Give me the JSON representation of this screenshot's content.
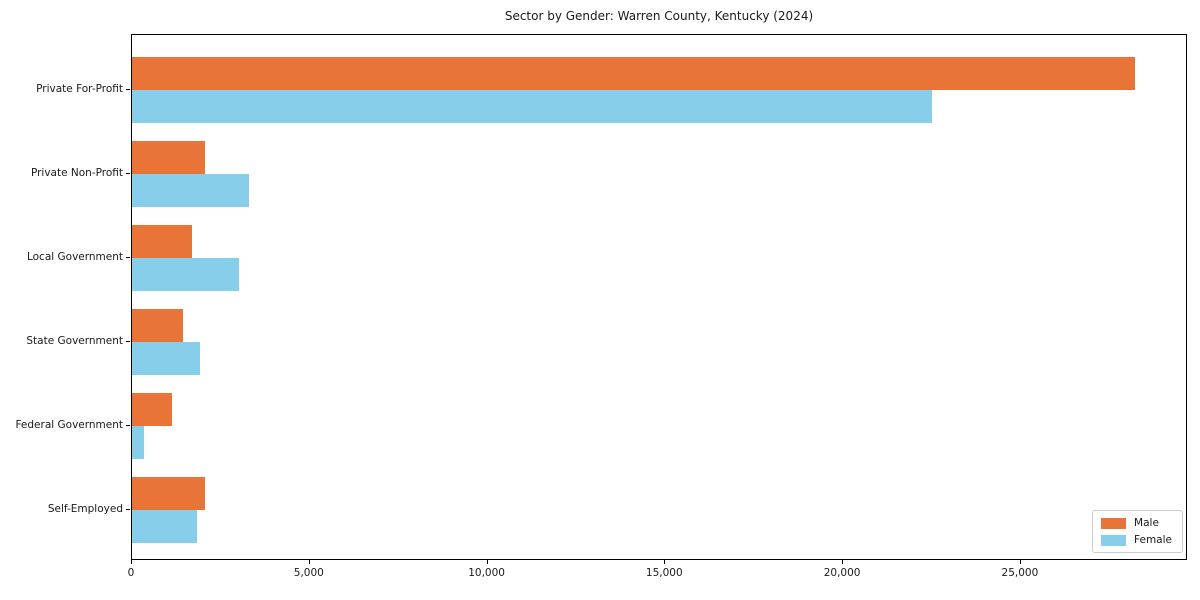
{
  "chart_data": {
    "type": "bar",
    "orientation": "horizontal",
    "title": "Sector by Gender: Warren County, Kentucky (2024)",
    "xlabel": "",
    "ylabel": "",
    "categories": [
      "Private For-Profit",
      "Private Non-Profit",
      "Local Government",
      "State Government",
      "Federal Government",
      "Self-Employed"
    ],
    "series": [
      {
        "name": "Male",
        "color": "#e97437",
        "values": [
          28200,
          2050,
          1700,
          1430,
          1120,
          2050
        ]
      },
      {
        "name": "Female",
        "color": "#87ceeb",
        "values": [
          22500,
          3300,
          3000,
          1900,
          340,
          1830
        ]
      }
    ],
    "xlim": [
      0,
      29700
    ],
    "xticks": [
      0,
      5000,
      10000,
      15000,
      20000,
      25000
    ],
    "xtick_labels": [
      "0",
      "5,000",
      "10,000",
      "15,000",
      "20,000",
      "25,000"
    ],
    "grid": false,
    "legend_position": "lower right"
  }
}
